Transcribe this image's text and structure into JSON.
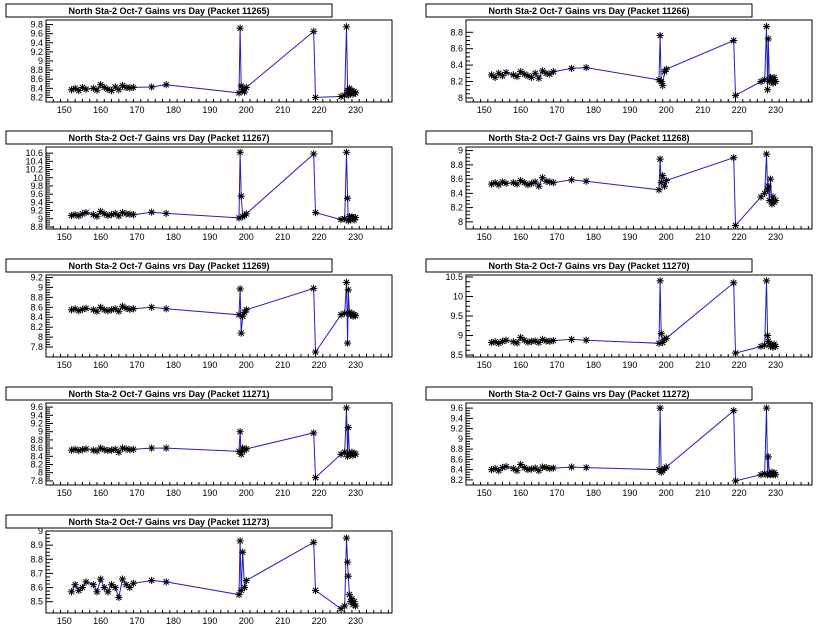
{
  "chart_data": [
    {
      "type": "line",
      "title": "North Sta-2 Oct-7 Gains vrs Day (Packet 11265)",
      "xlim": [
        145,
        240
      ],
      "ylim": [
        8.1,
        9.9
      ],
      "xticks": [
        150,
        160,
        170,
        180,
        190,
        200,
        210,
        220,
        230
      ],
      "xtick_labels": [
        "150",
        "160",
        "170",
        "180",
        "190",
        "200",
        "210",
        "220",
        "230"
      ],
      "yticks": [
        8.2,
        8.4,
        8.6,
        8.8,
        9,
        9.2,
        9.4,
        9.6,
        9.8
      ],
      "ytick_labels": [
        "8.2",
        "8.4",
        "8.6",
        "8.8",
        "9",
        "9.2",
        "9.4",
        "9.6",
        "9.8"
      ],
      "series": [
        {
          "x": [
            152,
            153,
            154,
            155,
            156,
            158,
            159,
            160,
            161,
            162,
            163,
            164,
            165,
            166,
            167,
            168,
            169,
            174,
            178,
            198,
            198.3,
            198.6,
            199,
            199.5,
            200,
            218.5,
            219,
            226,
            227,
            227.5,
            227.8,
            228,
            228.3,
            228.6,
            229,
            229.3,
            229.6,
            230
          ],
          "y": [
            8.37,
            8.4,
            8.35,
            8.42,
            8.38,
            8.4,
            8.36,
            8.48,
            8.42,
            8.38,
            8.35,
            8.43,
            8.37,
            8.46,
            8.42,
            8.41,
            8.42,
            8.43,
            8.48,
            8.3,
            9.72,
            8.45,
            8.37,
            8.32,
            8.42,
            9.65,
            8.2,
            8.22,
            8.25,
            9.75,
            8.35,
            8.25,
            8.4,
            8.3,
            8.35,
            8.27,
            8.33,
            8.3
          ]
        }
      ]
    },
    {
      "type": "line",
      "title": "North Sta-2 Oct-7 Gains vrs Day (Packet 11266)",
      "xlim": [
        145,
        240
      ],
      "ylim": [
        7.95,
        8.95
      ],
      "xticks": [
        150,
        160,
        170,
        180,
        190,
        200,
        210,
        220,
        230
      ],
      "xtick_labels": [
        "150",
        "160",
        "170",
        "180",
        "190",
        "200",
        "210",
        "220",
        "230"
      ],
      "yticks": [
        8,
        8.2,
        8.4,
        8.6,
        8.8
      ],
      "ytick_labels": [
        "8",
        "8.2",
        "8.4",
        "8.6",
        "8.8"
      ],
      "series": [
        {
          "x": [
            152,
            153,
            154,
            155,
            156,
            158,
            159,
            160,
            161,
            162,
            163,
            164,
            165,
            166,
            167,
            168,
            169,
            174,
            178,
            198,
            198.3,
            198.6,
            199,
            199.5,
            200,
            218.5,
            219,
            226,
            227,
            227.5,
            227.8,
            228,
            228.3,
            228.6,
            229,
            229.3,
            229.6,
            230
          ],
          "y": [
            8.28,
            8.25,
            8.3,
            8.27,
            8.31,
            8.28,
            8.26,
            8.32,
            8.29,
            8.27,
            8.25,
            8.3,
            8.24,
            8.33,
            8.3,
            8.29,
            8.32,
            8.36,
            8.37,
            8.22,
            8.76,
            8.2,
            8.15,
            8.32,
            8.35,
            8.7,
            8.03,
            8.2,
            8.22,
            8.87,
            8.1,
            8.72,
            8.2,
            8.25,
            8.22,
            8.18,
            8.25,
            8.2
          ]
        }
      ]
    },
    {
      "type": "line",
      "title": "North Sta-2 Oct-7 Gains vrs Day (Packet 11267)",
      "xlim": [
        145,
        240
      ],
      "ylim": [
        8.75,
        10.75
      ],
      "xticks": [
        150,
        160,
        170,
        180,
        190,
        200,
        210,
        220,
        230
      ],
      "xtick_labels": [
        "150",
        "160",
        "170",
        "180",
        "190",
        "200",
        "210",
        "220",
        "230"
      ],
      "yticks": [
        8.8,
        9,
        9.2,
        9.4,
        9.6,
        9.8,
        10,
        10.2,
        10.4,
        10.6
      ],
      "ytick_labels": [
        "8.8",
        "9",
        "9.2",
        "9.4",
        "9.6",
        "9.8",
        "10",
        "10.2",
        "10.4",
        "10.6"
      ],
      "series": [
        {
          "x": [
            152,
            153,
            154,
            155,
            156,
            158,
            159,
            160,
            161,
            162,
            163,
            164,
            165,
            166,
            167,
            168,
            169,
            174,
            178,
            198,
            198.3,
            198.6,
            199,
            199.5,
            200,
            218.5,
            219,
            226,
            227,
            227.5,
            227.8,
            228,
            228.3,
            228.6,
            229,
            229.3,
            229.6,
            230
          ],
          "y": [
            9.08,
            9.1,
            9.07,
            9.12,
            9.15,
            9.1,
            9.06,
            9.18,
            9.12,
            9.08,
            9.1,
            9.13,
            9.07,
            9.15,
            9.12,
            9.11,
            9.1,
            9.16,
            9.13,
            9.02,
            10.62,
            9.55,
            9.05,
            9.08,
            9.12,
            10.58,
            9.15,
            8.98,
            9.0,
            10.62,
            9.5,
            8.95,
            9.05,
            8.98,
            9.05,
            9.02,
            8.97,
            9.03
          ]
        }
      ]
    },
    {
      "type": "line",
      "title": "North Sta-2 Oct-7 Gains vrs Day (Packet 11268)",
      "xlim": [
        145,
        240
      ],
      "ylim": [
        7.9,
        9.05
      ],
      "xticks": [
        150,
        160,
        170,
        180,
        190,
        200,
        210,
        220,
        230
      ],
      "xtick_labels": [
        "150",
        "160",
        "170",
        "180",
        "190",
        "200",
        "210",
        "220",
        "230"
      ],
      "yticks": [
        8,
        8.2,
        8.4,
        8.6,
        8.8,
        9
      ],
      "ytick_labels": [
        "8",
        "8.2",
        "8.4",
        "8.6",
        "8.8",
        "9"
      ],
      "series": [
        {
          "x": [
            152,
            153,
            154,
            155,
            156,
            158,
            159,
            160,
            161,
            162,
            163,
            164,
            165,
            166,
            167,
            168,
            169,
            174,
            178,
            198,
            198.3,
            198.6,
            199,
            199.5,
            200,
            218.5,
            219,
            226,
            227,
            227.5,
            227.8,
            228,
            228.3,
            228.6,
            229,
            229.3,
            229.6,
            230
          ],
          "y": [
            8.53,
            8.55,
            8.52,
            8.56,
            8.54,
            8.55,
            8.53,
            8.58,
            8.55,
            8.52,
            8.54,
            8.56,
            8.5,
            8.62,
            8.57,
            8.56,
            8.55,
            8.59,
            8.57,
            8.45,
            8.88,
            8.55,
            8.65,
            8.5,
            8.58,
            8.9,
            7.95,
            8.35,
            8.4,
            8.95,
            8.45,
            8.5,
            8.3,
            8.6,
            8.25,
            8.35,
            8.28,
            8.3
          ]
        }
      ]
    },
    {
      "type": "line",
      "title": "North Sta-2 Oct-7 Gains vrs Day (Packet 11269)",
      "xlim": [
        145,
        240
      ],
      "ylim": [
        7.6,
        9.25
      ],
      "xticks": [
        150,
        160,
        170,
        180,
        190,
        200,
        210,
        220,
        230
      ],
      "xtick_labels": [
        "150",
        "160",
        "170",
        "180",
        "190",
        "200",
        "210",
        "220",
        "230"
      ],
      "yticks": [
        7.8,
        8,
        8.2,
        8.4,
        8.6,
        8.8,
        9,
        9.2
      ],
      "ytick_labels": [
        "7.8",
        "8",
        "8.2",
        "8.4",
        "8.6",
        "8.8",
        "9",
        "9.2"
      ],
      "series": [
        {
          "x": [
            152,
            153,
            154,
            155,
            156,
            158,
            159,
            160,
            161,
            162,
            163,
            164,
            165,
            166,
            167,
            168,
            169,
            174,
            178,
            198,
            198.3,
            198.6,
            199,
            199.5,
            200,
            218.5,
            219,
            226,
            227,
            227.5,
            227.8,
            228,
            228.3,
            228.6,
            229,
            229.3,
            229.6,
            230
          ],
          "y": [
            8.55,
            8.57,
            8.53,
            8.56,
            8.58,
            8.55,
            8.52,
            8.6,
            8.55,
            8.53,
            8.55,
            8.57,
            8.52,
            8.62,
            8.58,
            8.56,
            8.57,
            8.6,
            8.57,
            8.45,
            8.97,
            8.08,
            8.42,
            8.5,
            8.55,
            8.98,
            7.7,
            8.45,
            8.48,
            9.1,
            7.88,
            8.95,
            8.5,
            8.45,
            8.48,
            8.42,
            8.45,
            8.43
          ]
        }
      ]
    },
    {
      "type": "line",
      "title": "North Sta-2 Oct-7 Gains vrs Day (Packet 11270)",
      "xlim": [
        145,
        240
      ],
      "ylim": [
        8.45,
        10.55
      ],
      "xticks": [
        150,
        160,
        170,
        180,
        190,
        200,
        210,
        220,
        230
      ],
      "xtick_labels": [
        "150",
        "160",
        "170",
        "180",
        "190",
        "200",
        "210",
        "220",
        "230"
      ],
      "yticks": [
        8.5,
        9,
        9.5,
        10,
        10.5
      ],
      "ytick_labels": [
        "8.5",
        "9",
        "9.5",
        "10",
        "10.5"
      ],
      "series": [
        {
          "x": [
            152,
            153,
            154,
            155,
            156,
            158,
            159,
            160,
            161,
            162,
            163,
            164,
            165,
            166,
            167,
            168,
            169,
            174,
            178,
            198,
            198.3,
            198.6,
            199,
            199.5,
            200,
            218.5,
            219,
            226,
            227,
            227.5,
            227.8,
            228,
            228.3,
            228.6,
            229,
            229.3,
            229.6,
            230
          ],
          "y": [
            8.82,
            8.84,
            8.8,
            8.85,
            8.88,
            8.84,
            8.81,
            8.95,
            8.88,
            8.83,
            8.85,
            8.86,
            8.82,
            8.9,
            8.86,
            8.85,
            8.87,
            8.9,
            8.88,
            8.8,
            10.4,
            9.05,
            8.82,
            8.9,
            8.93,
            10.35,
            8.55,
            8.72,
            8.75,
            10.4,
            9.0,
            8.85,
            8.8,
            8.72,
            8.75,
            8.7,
            8.78,
            8.72
          ]
        }
      ]
    },
    {
      "type": "line",
      "title": "North Sta-2 Oct-7 Gains vrs Day (Packet 11271)",
      "xlim": [
        145,
        240
      ],
      "ylim": [
        7.7,
        9.7
      ],
      "xticks": [
        150,
        160,
        170,
        180,
        190,
        200,
        210,
        220,
        230
      ],
      "xtick_labels": [
        "150",
        "160",
        "170",
        "180",
        "190",
        "200",
        "210",
        "220",
        "230"
      ],
      "yticks": [
        7.8,
        8,
        8.2,
        8.4,
        8.6,
        8.8,
        9,
        9.2,
        9.4,
        9.6
      ],
      "ytick_labels": [
        "7.8",
        "8",
        "8.2",
        "8.4",
        "8.6",
        "8.8",
        "9",
        "9.2",
        "9.4",
        "9.6"
      ],
      "series": [
        {
          "x": [
            152,
            153,
            154,
            155,
            156,
            158,
            159,
            160,
            161,
            162,
            163,
            164,
            165,
            166,
            167,
            168,
            169,
            174,
            178,
            198,
            198.3,
            198.6,
            199,
            199.5,
            200,
            218.5,
            219,
            226,
            227,
            227.5,
            227.8,
            228,
            228.3,
            228.6,
            229,
            229.3,
            229.6,
            230
          ],
          "y": [
            8.55,
            8.57,
            8.54,
            8.56,
            8.58,
            8.55,
            8.53,
            8.6,
            8.56,
            8.54,
            8.55,
            8.57,
            8.5,
            8.6,
            8.58,
            8.56,
            8.57,
            8.6,
            8.6,
            8.52,
            9.0,
            8.45,
            8.6,
            8.55,
            8.58,
            8.97,
            7.88,
            8.45,
            8.5,
            9.58,
            8.4,
            9.1,
            8.48,
            8.45,
            8.5,
            8.42,
            8.48,
            8.45
          ]
        }
      ]
    },
    {
      "type": "line",
      "title": "North Sta-2 Oct-7 Gains vrs Day (Packet 11272)",
      "xlim": [
        145,
        240
      ],
      "ylim": [
        8.1,
        9.7
      ],
      "xticks": [
        150,
        160,
        170,
        180,
        190,
        200,
        210,
        220,
        230
      ],
      "xtick_labels": [
        "150",
        "160",
        "170",
        "180",
        "190",
        "200",
        "210",
        "220",
        "230"
      ],
      "yticks": [
        8.2,
        8.4,
        8.6,
        8.8,
        9,
        9.2,
        9.4,
        9.6
      ],
      "ytick_labels": [
        "8.2",
        "8.4",
        "8.6",
        "8.8",
        "9",
        "9.2",
        "9.4",
        "9.6"
      ],
      "series": [
        {
          "x": [
            152,
            153,
            154,
            155,
            156,
            158,
            159,
            160,
            161,
            162,
            163,
            164,
            165,
            166,
            167,
            168,
            169,
            174,
            178,
            198,
            198.3,
            198.6,
            199,
            199.5,
            200,
            218.5,
            219,
            226,
            227,
            227.5,
            227.8,
            228,
            228.3,
            228.6,
            229,
            229.3,
            229.6,
            230
          ],
          "y": [
            8.4,
            8.42,
            8.38,
            8.44,
            8.46,
            8.42,
            8.38,
            8.5,
            8.44,
            8.4,
            8.41,
            8.43,
            8.38,
            8.45,
            8.44,
            8.42,
            8.43,
            8.45,
            8.44,
            8.4,
            9.6,
            8.35,
            8.38,
            8.42,
            8.45,
            9.55,
            8.18,
            8.3,
            8.32,
            9.6,
            8.3,
            8.65,
            8.32,
            8.3,
            8.35,
            8.3,
            8.34,
            8.3
          ]
        }
      ]
    },
    {
      "type": "line",
      "title": "North Sta-2 Oct-7 Gains vrs Day (Packet 11273)",
      "xlim": [
        145,
        240
      ],
      "ylim": [
        8.42,
        9.0
      ],
      "xticks": [
        150,
        160,
        170,
        180,
        190,
        200,
        210,
        220,
        230
      ],
      "xtick_labels": [
        "150",
        "160",
        "170",
        "180",
        "190",
        "200",
        "210",
        "220",
        "230"
      ],
      "yticks": [
        8.5,
        8.6,
        8.7,
        8.8,
        8.9,
        9
      ],
      "ytick_labels": [
        "8.5",
        "8.6",
        "8.7",
        "8.8",
        "8.9",
        "9"
      ],
      "series": [
        {
          "x": [
            152,
            153,
            154,
            155,
            156,
            158,
            159,
            160,
            161,
            162,
            163,
            164,
            165,
            166,
            167,
            168,
            169,
            174,
            178,
            198,
            198.3,
            198.6,
            199,
            199.5,
            200,
            218.5,
            219,
            226,
            227,
            227.5,
            227.8,
            228,
            228.3,
            228.6,
            229,
            229.3,
            229.6,
            230
          ],
          "y": [
            8.57,
            8.62,
            8.58,
            8.6,
            8.64,
            8.62,
            8.57,
            8.66,
            8.6,
            8.57,
            8.62,
            8.6,
            8.53,
            8.66,
            8.62,
            8.6,
            8.63,
            8.65,
            8.64,
            8.55,
            8.93,
            8.58,
            8.85,
            8.6,
            8.65,
            8.92,
            8.58,
            8.45,
            8.47,
            8.95,
            8.78,
            8.68,
            8.55,
            8.5,
            8.52,
            8.48,
            8.5,
            8.47
          ]
        }
      ]
    }
  ]
}
